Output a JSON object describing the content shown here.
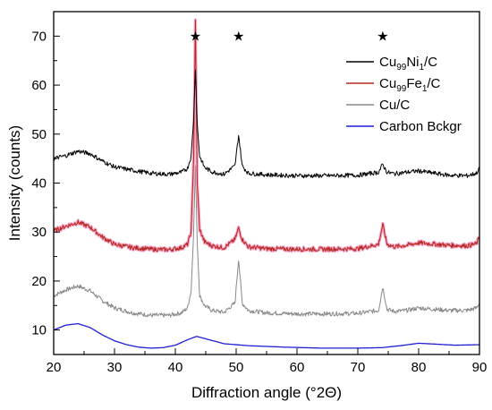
{
  "chart_data": {
    "type": "line",
    "xlabel": "Diffraction angle (°2Θ)",
    "ylabel": "Intensity (counts)",
    "xlim": [
      20,
      90
    ],
    "ylim": [
      5,
      75
    ],
    "xticks": [
      "20",
      "30",
      "40",
      "50",
      "60",
      "70",
      "80",
      "90"
    ],
    "yticks": [
      "10",
      "20",
      "30",
      "40",
      "50",
      "60",
      "70"
    ],
    "peak_markers": {
      "symbol": "★",
      "x": [
        43.3,
        50.4,
        74.1
      ],
      "y": 70
    },
    "legend_position": "top-right",
    "series": [
      {
        "name": "Cu99Ni1/C",
        "name_parts": [
          "Cu",
          "99",
          "Ni",
          "1",
          "/C"
        ],
        "color": "#000000",
        "x": [
          20,
          22,
          24,
          26,
          28,
          30,
          33,
          36,
          39,
          41,
          42,
          42.6,
          43.0,
          43.3,
          43.6,
          44.0,
          44.8,
          46,
          48,
          49.8,
          50.4,
          51.0,
          52,
          55,
          60,
          65,
          70,
          73.4,
          74.1,
          74.8,
          76,
          78,
          80,
          82,
          85,
          88,
          89.5,
          90
        ],
        "values": [
          45.0,
          45.6,
          46.5,
          46.0,
          44.5,
          43.3,
          42.6,
          42.0,
          41.8,
          42.2,
          43.0,
          45.5,
          53.0,
          63.5,
          52.0,
          45.5,
          43.2,
          42.3,
          41.8,
          43.5,
          49.8,
          43.5,
          42.0,
          41.7,
          41.5,
          41.5,
          41.6,
          42.2,
          43.8,
          42.2,
          41.9,
          42.2,
          42.5,
          42.1,
          41.6,
          41.5,
          42.0,
          43.0
        ]
      },
      {
        "name": "Cu99Fe1/C",
        "name_parts": [
          "Cu",
          "99",
          "Fe",
          "1",
          "/C"
        ],
        "color": "#b5281e",
        "x": [
          20,
          22,
          24,
          26,
          28,
          30,
          33,
          36,
          39,
          41,
          42,
          42.6,
          43.0,
          43.3,
          43.6,
          44.0,
          44.8,
          46,
          48,
          49.8,
          50.4,
          51.0,
          52,
          55,
          60,
          65,
          70,
          73.4,
          74.1,
          74.8,
          76,
          78,
          80,
          82,
          85,
          88,
          89.5,
          90
        ],
        "values": [
          30.2,
          31.2,
          32.0,
          31.0,
          29.0,
          27.5,
          26.8,
          26.5,
          26.4,
          26.8,
          27.5,
          30.0,
          45.0,
          73.0,
          40.0,
          30.5,
          28.0,
          27.2,
          26.8,
          28.5,
          30.8,
          28.5,
          27.0,
          26.6,
          26.5,
          26.5,
          26.6,
          27.5,
          31.5,
          27.5,
          27.0,
          27.3,
          27.8,
          27.6,
          27.3,
          27.2,
          27.6,
          29.0
        ]
      },
      {
        "name": "Cu/C",
        "name_parts": [
          "Cu/C"
        ],
        "color": "#888888",
        "x": [
          20,
          22,
          24,
          26,
          28,
          30,
          33,
          36,
          39,
          41,
          42,
          42.6,
          43.0,
          43.3,
          43.6,
          44.0,
          44.8,
          46,
          48,
          49.8,
          50.4,
          51.0,
          52,
          55,
          60,
          65,
          70,
          73.4,
          74.1,
          74.8,
          76,
          78,
          80,
          82,
          85,
          88,
          89.5,
          90
        ],
        "values": [
          17.0,
          18.2,
          19.0,
          18.0,
          16.0,
          14.5,
          13.5,
          13.0,
          13.0,
          13.5,
          14.5,
          18.0,
          30.0,
          43.5,
          28.0,
          17.0,
          15.0,
          14.0,
          13.6,
          15.5,
          24.5,
          15.5,
          14.0,
          13.5,
          13.3,
          13.3,
          13.4,
          14.0,
          18.8,
          14.2,
          13.8,
          14.0,
          14.5,
          14.3,
          14.0,
          14.0,
          14.5,
          15.5
        ]
      },
      {
        "name": "Carbon Bckgr",
        "name_parts": [
          "Carbon Bckgr"
        ],
        "color": "#1f1fd6",
        "x": [
          20,
          22,
          24,
          26,
          28,
          30,
          32,
          34,
          36,
          38,
          40,
          42,
          43.5,
          45,
          48,
          52,
          58,
          64,
          70,
          74,
          77,
          80,
          83,
          86,
          90
        ],
        "values": [
          10.0,
          11.0,
          11.3,
          10.5,
          9.0,
          7.8,
          7.0,
          6.5,
          6.3,
          6.4,
          6.9,
          8.0,
          8.7,
          8.2,
          7.2,
          6.8,
          6.5,
          6.3,
          6.3,
          6.4,
          6.8,
          7.3,
          7.1,
          6.9,
          7.0
        ]
      }
    ]
  }
}
